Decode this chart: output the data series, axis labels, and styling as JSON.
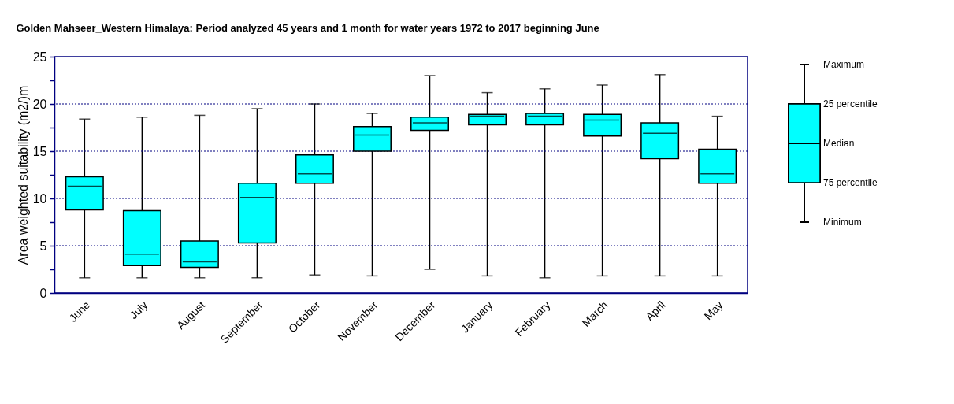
{
  "chart_data": {
    "type": "box",
    "title": "Golden Mahseer_Western Himalaya: Period analyzed 45 years and 1 month for water years 1972 to 2017 beginning June",
    "ylabel": "Area weighted suitability (m2/)m",
    "categories": [
      "June",
      "July",
      "August",
      "September",
      "October",
      "November",
      "December",
      "January",
      "February",
      "March",
      "April",
      "May"
    ],
    "color": "#00ffff",
    "boxes": [
      {
        "low": 1.6,
        "q1": 8.8,
        "median": 11.3,
        "q3": 12.3,
        "high": 18.4
      },
      {
        "low": 1.6,
        "q1": 2.9,
        "median": 4.1,
        "q3": 8.7,
        "high": 18.6
      },
      {
        "low": 1.6,
        "q1": 2.7,
        "median": 3.3,
        "q3": 5.5,
        "high": 18.8
      },
      {
        "low": 1.6,
        "q1": 5.3,
        "median": 10.1,
        "q3": 11.6,
        "high": 19.5
      },
      {
        "low": 1.9,
        "q1": 11.6,
        "median": 12.6,
        "q3": 14.6,
        "high": 20.0
      },
      {
        "low": 1.8,
        "q1": 15.0,
        "median": 16.7,
        "q3": 17.6,
        "high": 19.0
      },
      {
        "low": 2.5,
        "q1": 17.2,
        "median": 18.0,
        "q3": 18.6,
        "high": 23.0
      },
      {
        "low": 1.8,
        "q1": 17.8,
        "median": 18.7,
        "q3": 18.9,
        "high": 21.2
      },
      {
        "low": 1.6,
        "q1": 17.8,
        "median": 18.7,
        "q3": 19.0,
        "high": 21.6
      },
      {
        "low": 1.8,
        "q1": 16.6,
        "median": 18.3,
        "q3": 18.9,
        "high": 22.0
      },
      {
        "low": 1.8,
        "q1": 14.2,
        "median": 16.9,
        "q3": 18.0,
        "high": 23.1
      },
      {
        "low": 1.8,
        "q1": 11.6,
        "median": 12.6,
        "q3": 15.2,
        "high": 18.7
      }
    ],
    "ylim": [
      0,
      25
    ],
    "yticks": [
      0,
      {
        "value": 2.5,
        "label": null
      },
      5,
      {
        "value": 7.5,
        "label": null
      },
      10,
      {
        "value": 12.5,
        "label": null
      },
      15,
      {
        "value": 17.5,
        "label": null
      },
      20,
      {
        "value": 22.5,
        "label": null
      },
      25
    ],
    "grid": "y",
    "annotations": [
      "Maximum",
      "25 percentile",
      "Median",
      "75 percentile",
      "Minimum"
    ]
  }
}
